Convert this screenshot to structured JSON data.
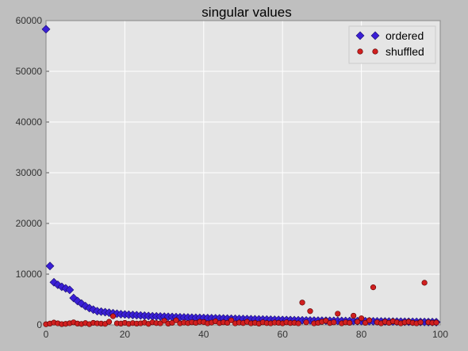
{
  "chart_data": {
    "type": "scatter",
    "title": "singular values",
    "xlabel": "",
    "ylabel": "",
    "xlim": [
      0,
      100
    ],
    "ylim": [
      0,
      60000
    ],
    "x_ticks": [
      0,
      20,
      40,
      60,
      80,
      100
    ],
    "y_ticks": [
      0,
      10000,
      20000,
      30000,
      40000,
      50000,
      60000
    ],
    "grid": true,
    "legend_position": "top-right",
    "series": [
      {
        "name": "ordered",
        "marker": "diamond",
        "color": "#3a1fd6",
        "x": [
          0,
          1,
          2,
          3,
          4,
          5,
          6,
          7,
          8,
          9,
          10,
          11,
          12,
          13,
          14,
          15,
          16,
          17,
          18,
          19,
          20,
          21,
          22,
          23,
          24,
          25,
          26,
          27,
          28,
          29,
          30,
          31,
          32,
          33,
          34,
          35,
          36,
          37,
          38,
          39,
          40,
          41,
          42,
          43,
          44,
          45,
          46,
          47,
          48,
          49,
          50,
          51,
          52,
          53,
          54,
          55,
          56,
          57,
          58,
          59,
          60,
          61,
          62,
          63,
          64,
          65,
          66,
          67,
          68,
          69,
          70,
          71,
          72,
          73,
          74,
          75,
          76,
          77,
          78,
          79,
          80,
          81,
          82,
          83,
          84,
          85,
          86,
          87,
          88,
          89,
          90,
          91,
          92,
          93,
          94,
          95,
          96,
          97,
          98,
          99
        ],
        "values": [
          58300,
          11600,
          8400,
          7900,
          7500,
          7200,
          6900,
          5300,
          4700,
          4200,
          3700,
          3300,
          3000,
          2700,
          2600,
          2500,
          2400,
          2300,
          2200,
          2100,
          2050,
          2000,
          1950,
          1900,
          1850,
          1800,
          1750,
          1700,
          1680,
          1650,
          1620,
          1590,
          1560,
          1530,
          1500,
          1470,
          1450,
          1420,
          1400,
          1380,
          1360,
          1340,
          1320,
          1300,
          1280,
          1260,
          1240,
          1220,
          1200,
          1180,
          1160,
          1140,
          1120,
          1100,
          1080,
          1060,
          1040,
          1020,
          1000,
          985,
          970,
          955,
          940,
          925,
          910,
          895,
          880,
          865,
          850,
          840,
          830,
          820,
          810,
          800,
          790,
          780,
          770,
          760,
          750,
          740,
          730,
          720,
          710,
          700,
          690,
          680,
          670,
          660,
          650,
          640,
          630,
          620,
          610,
          600,
          590,
          580,
          570,
          560,
          550,
          540
        ]
      },
      {
        "name": "shuffled",
        "marker": "circle",
        "color": "#d01f1f",
        "x": [
          0,
          1,
          2,
          3,
          4,
          5,
          6,
          7,
          8,
          9,
          10,
          11,
          12,
          13,
          14,
          15,
          16,
          17,
          18,
          19,
          20,
          21,
          22,
          23,
          24,
          25,
          26,
          27,
          28,
          29,
          30,
          31,
          32,
          33,
          34,
          35,
          36,
          37,
          38,
          39,
          40,
          41,
          42,
          43,
          44,
          45,
          46,
          47,
          48,
          49,
          50,
          51,
          52,
          53,
          54,
          55,
          56,
          57,
          58,
          59,
          60,
          61,
          62,
          63,
          64,
          65,
          66,
          67,
          68,
          69,
          70,
          71,
          72,
          73,
          74,
          75,
          76,
          77,
          78,
          79,
          80,
          81,
          82,
          83,
          84,
          85,
          86,
          87,
          88,
          89,
          90,
          91,
          92,
          93,
          94,
          95,
          96,
          97,
          98,
          99
        ],
        "values": [
          120,
          250,
          450,
          300,
          150,
          200,
          320,
          500,
          250,
          180,
          350,
          150,
          400,
          300,
          250,
          200,
          600,
          1700,
          300,
          250,
          400,
          200,
          350,
          250,
          300,
          450,
          200,
          500,
          350,
          300,
          800,
          250,
          400,
          900,
          300,
          450,
          350,
          500,
          400,
          600,
          550,
          300,
          450,
          700,
          350,
          500,
          400,
          900,
          300,
          450,
          350,
          600,
          300,
          400,
          250,
          500,
          350,
          300,
          450,
          400,
          300,
          500,
          350,
          400,
          300,
          4400,
          500,
          2700,
          300,
          400,
          600,
          800,
          350,
          500,
          2200,
          300,
          500,
          400,
          1800,
          600,
          1300,
          400,
          900,
          7400,
          500,
          300,
          600,
          400,
          700,
          500,
          300,
          500,
          600,
          400,
          300,
          500,
          8300,
          500,
          400,
          450
        ]
      }
    ]
  }
}
